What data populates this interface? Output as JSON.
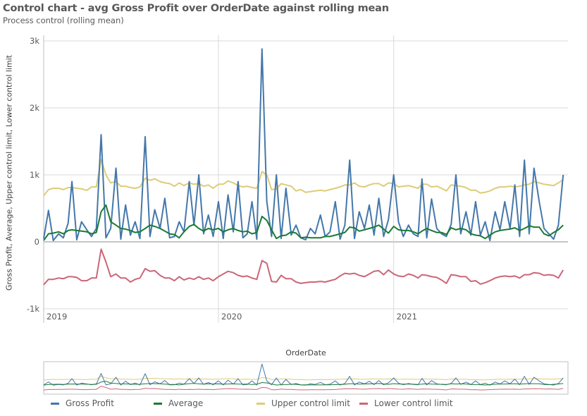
{
  "chart_data": {
    "type": "line",
    "title": "Control chart - avg Gross Profit over OrderDate against rolling mean",
    "subtitle": "Process control (rolling mean)",
    "xlabel": "OrderDate",
    "ylabel": "Gross Profit, Average, Upper control limit, Lower control limit",
    "ylim": [
      -1000,
      3000
    ],
    "xlim": [
      "2019-01-01",
      "2021-12-31"
    ],
    "y_ticks": [
      {
        "value": 3000,
        "label": "3k"
      },
      {
        "value": 2000,
        "label": "2k"
      },
      {
        "value": 1000,
        "label": "1k"
      },
      {
        "value": 0,
        "label": "0"
      },
      {
        "value": -1000,
        "label": "-1k"
      }
    ],
    "x_ticks": [
      {
        "value": "2019-01-01",
        "label": "2019"
      },
      {
        "value": "2020-01-01",
        "label": "2020"
      },
      {
        "value": "2021-01-01",
        "label": "2021"
      }
    ],
    "grid": true,
    "legend_position": "bottom",
    "navigator": true,
    "x": [
      "2019-01-01",
      "2019-01-11",
      "2019-01-21",
      "2019-02-01",
      "2019-02-11",
      "2019-02-21",
      "2019-03-01",
      "2019-03-11",
      "2019-03-21",
      "2019-04-01",
      "2019-04-11",
      "2019-04-21",
      "2019-05-01",
      "2019-05-11",
      "2019-05-21",
      "2019-06-01",
      "2019-06-11",
      "2019-06-21",
      "2019-07-01",
      "2019-07-11",
      "2019-07-21",
      "2019-08-01",
      "2019-08-11",
      "2019-08-21",
      "2019-09-01",
      "2019-09-11",
      "2019-09-21",
      "2019-10-01",
      "2019-10-11",
      "2019-10-21",
      "2019-11-01",
      "2019-11-11",
      "2019-11-21",
      "2019-12-01",
      "2019-12-11",
      "2019-12-21",
      "2020-01-01",
      "2020-01-11",
      "2020-01-21",
      "2020-02-01",
      "2020-02-11",
      "2020-02-21",
      "2020-03-01",
      "2020-03-11",
      "2020-03-21",
      "2020-04-01",
      "2020-04-11",
      "2020-04-21",
      "2020-05-01",
      "2020-05-11",
      "2020-05-21",
      "2020-06-01",
      "2020-06-11",
      "2020-06-21",
      "2020-07-01",
      "2020-07-11",
      "2020-07-21",
      "2020-08-01",
      "2020-08-11",
      "2020-08-21",
      "2020-09-01",
      "2020-09-11",
      "2020-09-21",
      "2020-10-01",
      "2020-10-11",
      "2020-10-21",
      "2020-11-01",
      "2020-11-11",
      "2020-11-21",
      "2020-12-01",
      "2020-12-11",
      "2020-12-21",
      "2021-01-01",
      "2021-01-11",
      "2021-01-21",
      "2021-02-01",
      "2021-02-11",
      "2021-02-21",
      "2021-03-01",
      "2021-03-11",
      "2021-03-21",
      "2021-04-01",
      "2021-04-11",
      "2021-04-21",
      "2021-05-01",
      "2021-05-11",
      "2021-05-21",
      "2021-06-01",
      "2021-06-11",
      "2021-06-21",
      "2021-07-01",
      "2021-07-11",
      "2021-07-21",
      "2021-08-01",
      "2021-08-11",
      "2021-08-21",
      "2021-09-01",
      "2021-09-11",
      "2021-09-21",
      "2021-10-01",
      "2021-10-11",
      "2021-10-21",
      "2021-11-01",
      "2021-11-11",
      "2021-11-21",
      "2021-12-01",
      "2021-12-11",
      "2021-12-21"
    ],
    "series": [
      {
        "name": "Gross Profit",
        "color": "#4477aa",
        "values": [
          50,
          470,
          20,
          120,
          60,
          280,
          900,
          30,
          300,
          180,
          80,
          200,
          1600,
          60,
          200,
          1100,
          40,
          550,
          100,
          300,
          50,
          1570,
          80,
          480,
          200,
          650,
          60,
          80,
          300,
          150,
          900,
          250,
          1000,
          120,
          400,
          80,
          600,
          50,
          700,
          150,
          900,
          60,
          120,
          600,
          40,
          2880,
          600,
          80,
          1000,
          50,
          800,
          100,
          250,
          60,
          30,
          200,
          120,
          400,
          80,
          150,
          600,
          40,
          250,
          1220,
          50,
          450,
          200,
          550,
          100,
          650,
          80,
          330,
          1000,
          300,
          80,
          250,
          120,
          80,
          940,
          60,
          640,
          200,
          120,
          80,
          260,
          1000,
          120,
          450,
          100,
          600,
          100,
          300,
          20,
          450,
          180,
          600,
          200,
          850,
          80,
          1220,
          120,
          1100,
          600,
          200,
          120,
          40,
          250,
          1000
        ]
      },
      {
        "name": "Average",
        "color": "#1b7a33",
        "values": [
          20,
          120,
          130,
          150,
          120,
          170,
          180,
          170,
          160,
          150,
          120,
          140,
          450,
          550,
          300,
          250,
          200,
          190,
          170,
          140,
          150,
          200,
          250,
          230,
          200,
          160,
          120,
          110,
          60,
          150,
          230,
          260,
          200,
          160,
          200,
          180,
          200,
          150,
          180,
          200,
          170,
          150,
          160,
          120,
          140,
          380,
          320,
          180,
          50,
          90,
          100,
          150,
          130,
          60,
          70,
          60,
          60,
          60,
          80,
          80,
          100,
          120,
          140,
          220,
          210,
          160,
          180,
          200,
          220,
          250,
          190,
          130,
          230,
          180,
          170,
          170,
          150,
          120,
          160,
          200,
          170,
          140,
          140,
          110,
          210,
          180,
          200,
          180,
          120,
          100,
          90,
          50,
          100,
          150,
          170,
          180,
          190,
          210,
          170,
          200,
          240,
          220,
          220,
          120,
          90,
          140,
          180,
          250
        ]
      },
      {
        "name": "Upper control limit",
        "color": "#ddcc77",
        "values": [
          690,
          780,
          800,
          800,
          780,
          810,
          810,
          800,
          790,
          770,
          820,
          820,
          1230,
          1000,
          880,
          900,
          830,
          830,
          810,
          800,
          820,
          950,
          920,
          940,
          900,
          880,
          870,
          830,
          880,
          840,
          880,
          860,
          870,
          830,
          850,
          800,
          860,
          860,
          910,
          880,
          840,
          820,
          830,
          810,
          800,
          1050,
          1000,
          780,
          790,
          870,
          850,
          830,
          760,
          780,
          740,
          750,
          760,
          770,
          760,
          780,
          800,
          820,
          850,
          850,
          880,
          830,
          820,
          850,
          870,
          870,
          830,
          880,
          870,
          820,
          830,
          840,
          820,
          800,
          860,
          860,
          820,
          830,
          800,
          760,
          850,
          840,
          830,
          810,
          770,
          770,
          730,
          740,
          760,
          800,
          820,
          820,
          830,
          820,
          830,
          850,
          860,
          900,
          880,
          860,
          850,
          840,
          880,
          930
        ]
      },
      {
        "name": "Lower control limit",
        "color": "#cc6677",
        "values": [
          -640,
          -560,
          -560,
          -540,
          -550,
          -520,
          -520,
          -530,
          -580,
          -580,
          -540,
          -540,
          -110,
          -300,
          -520,
          -480,
          -540,
          -540,
          -600,
          -560,
          -540,
          -400,
          -440,
          -430,
          -500,
          -540,
          -540,
          -580,
          -520,
          -570,
          -540,
          -560,
          -520,
          -560,
          -540,
          -580,
          -520,
          -480,
          -440,
          -460,
          -500,
          -520,
          -510,
          -540,
          -560,
          -280,
          -320,
          -590,
          -600,
          -500,
          -550,
          -550,
          -600,
          -620,
          -610,
          -600,
          -600,
          -590,
          -600,
          -580,
          -560,
          -510,
          -470,
          -480,
          -470,
          -500,
          -520,
          -480,
          -440,
          -430,
          -490,
          -420,
          -480,
          -510,
          -520,
          -480,
          -500,
          -540,
          -490,
          -500,
          -520,
          -530,
          -570,
          -620,
          -490,
          -500,
          -520,
          -520,
          -590,
          -580,
          -630,
          -610,
          -580,
          -540,
          -520,
          -510,
          -520,
          -510,
          -540,
          -490,
          -490,
          -460,
          -470,
          -500,
          -490,
          -500,
          -540,
          -420
        ]
      }
    ]
  }
}
